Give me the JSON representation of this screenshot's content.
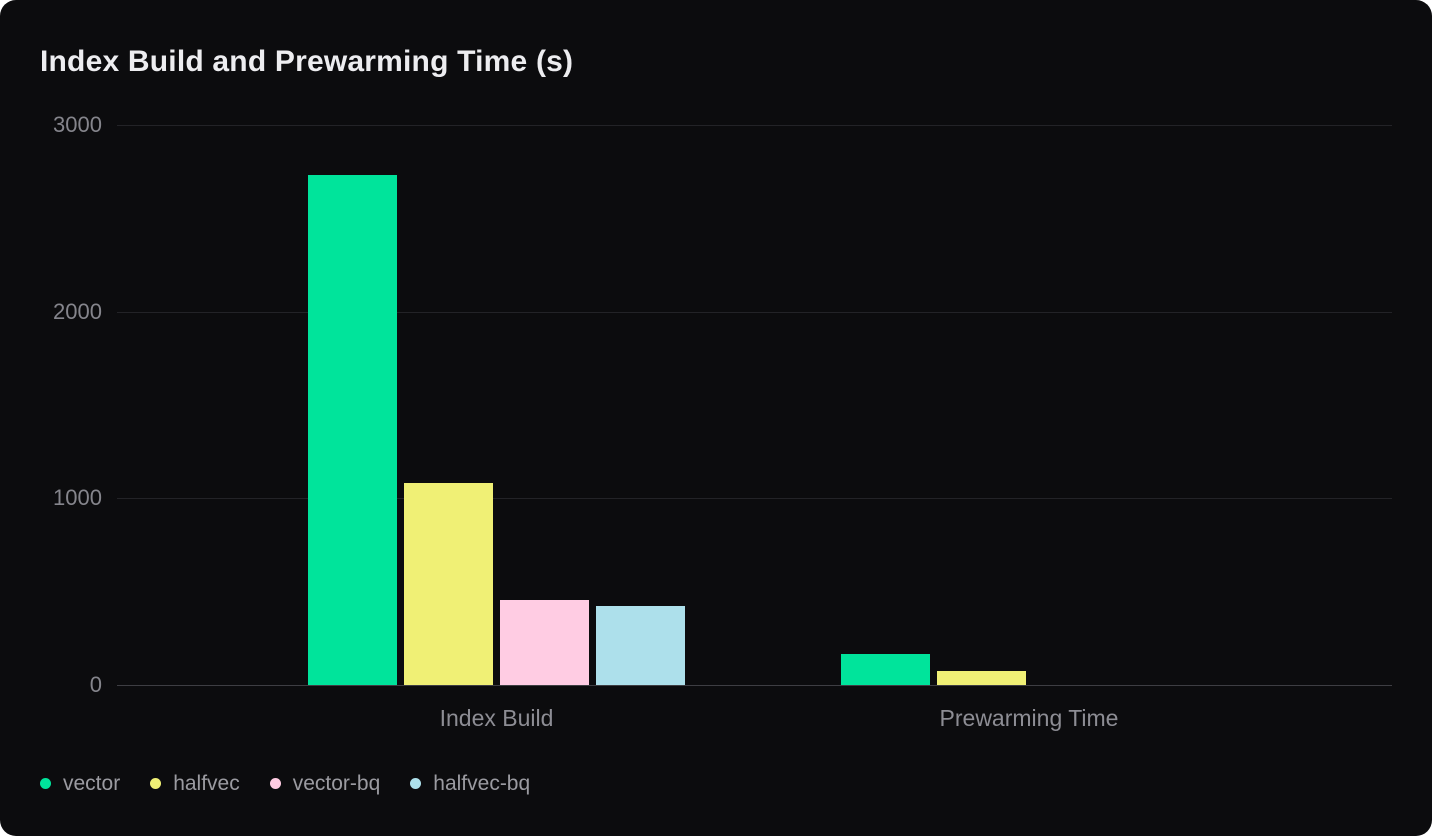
{
  "card": {
    "background": "#0c0c0e",
    "page_background": "#ffffff"
  },
  "chart_data": {
    "type": "bar",
    "title": "Index Build and Prewarming Time (s)",
    "categories": [
      "Index Build",
      "Prewarming Time"
    ],
    "series": [
      {
        "name": "vector",
        "color": "#00e49b",
        "values": [
          2730,
          165
        ]
      },
      {
        "name": "halfvec",
        "color": "#f0f075",
        "values": [
          1080,
          77
        ]
      },
      {
        "name": "vector-bq",
        "color": "#ffcce3",
        "values": [
          455,
          0
        ]
      },
      {
        "name": "halfvec-bq",
        "color": "#ade0eb",
        "values": [
          425,
          0
        ]
      }
    ],
    "xlabel": "",
    "ylabel": "",
    "ylim": [
      0,
      3000
    ],
    "yticks": [
      0,
      1000,
      2000,
      3000
    ],
    "grid": true,
    "legend_position": "bottom-left"
  },
  "colors": {
    "title_text": "#ededf0",
    "y_tick_text": "#85858c",
    "category_text": "#8d8d94",
    "legend_text": "#9b9ba1",
    "gridline": "#232327",
    "zero_line": "#3e3e43"
  }
}
